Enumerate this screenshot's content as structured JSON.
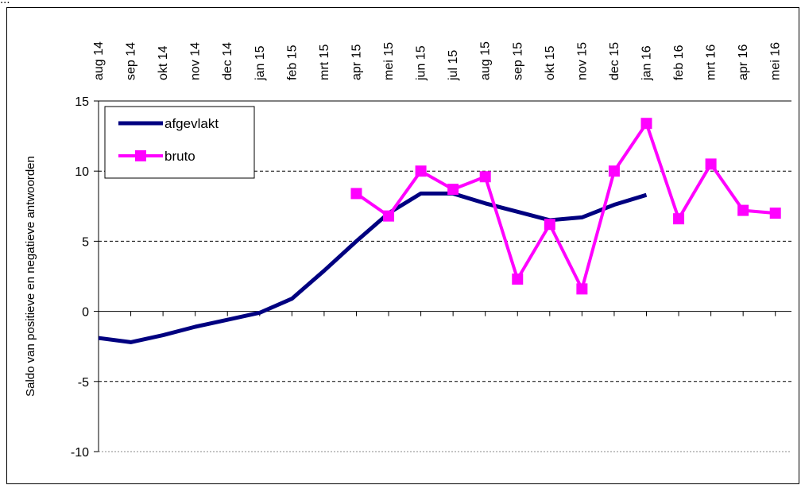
{
  "caption": "...",
  "colors": {
    "afgevlakt": "#000080",
    "bruto": "#ff00ff"
  },
  "chart_data": {
    "type": "line",
    "ylabel": "Saldo van positieve en negatieve antwoorden",
    "xlabel": "",
    "ylim": [
      -10,
      15
    ],
    "yticks": [
      "15",
      "10",
      "5",
      "0",
      "-5",
      "-10"
    ],
    "ytick_values": [
      15,
      10,
      5,
      0,
      -5,
      -10
    ],
    "x_axis_position": "top",
    "gridlines": "dashed horizontal at 10, 5 and -5",
    "legend_position": "top-left",
    "categories": [
      "aug 14",
      "sep 14",
      "okt 14",
      "nov 14",
      "dec 14",
      "jan 15",
      "feb 15",
      "mrt 15",
      "apr 15",
      "mei 15",
      "jun 15",
      "jul 15",
      "aug 15",
      "sep 15",
      "okt 15",
      "nov 15",
      "dec 15",
      "jan 16",
      "feb 16",
      "mrt 16",
      "apr 16",
      "mei 16"
    ],
    "series": [
      {
        "name": "afgevlakt",
        "values": [
          -1.9,
          -2.2,
          -1.7,
          -1.1,
          -0.6,
          -0.1,
          0.9,
          2.9,
          5.0,
          7.0,
          8.4,
          8.4,
          7.7,
          7.1,
          6.5,
          6.7,
          7.6,
          8.3,
          null,
          null,
          null,
          null
        ]
      },
      {
        "name": "bruto",
        "values": [
          null,
          null,
          null,
          null,
          null,
          null,
          null,
          null,
          8.4,
          6.8,
          10.0,
          8.7,
          9.6,
          2.3,
          6.2,
          1.6,
          10.0,
          13.4,
          6.6,
          10.5,
          7.2,
          7.0
        ]
      }
    ]
  }
}
